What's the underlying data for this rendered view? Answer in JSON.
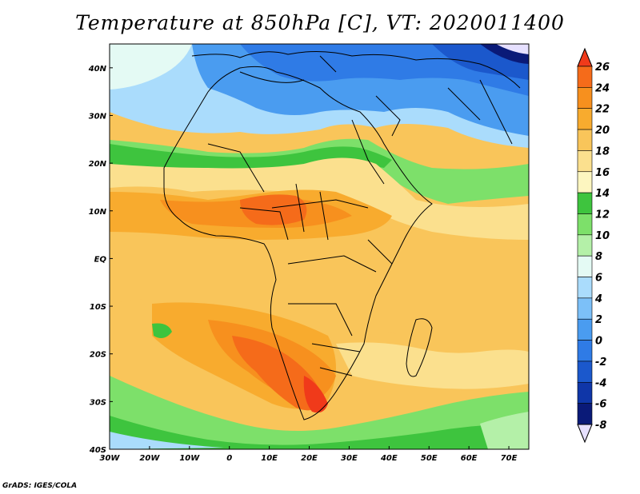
{
  "title": "Temperature at 850hPa [C], VT: 2020011400",
  "credit": "GrADS: IGES/COLA",
  "map": {
    "variable": "Temperature at 850hPa",
    "units": "C",
    "valid_time": "2020011400",
    "region": "Africa",
    "lon_range": [
      -30,
      75
    ],
    "lat_range": [
      -40,
      45
    ],
    "lat_labels": [
      "40N",
      "30N",
      "20N",
      "10N",
      "EQ",
      "10S",
      "20S",
      "30S",
      "40S"
    ],
    "lat_values": [
      40,
      30,
      20,
      10,
      0,
      -10,
      -20,
      -30,
      -40
    ],
    "lon_labels": [
      "30W",
      "20W",
      "10W",
      "0",
      "10E",
      "20E",
      "30E",
      "40E",
      "50E",
      "60E",
      "70E"
    ],
    "lon_values": [
      -30,
      -20,
      -10,
      0,
      10,
      20,
      30,
      40,
      50,
      60,
      70
    ]
  },
  "colorbar": {
    "levels": [
      26,
      24,
      22,
      20,
      18,
      16,
      14,
      12,
      10,
      8,
      6,
      4,
      2,
      0,
      -2,
      -4,
      -6,
      -8
    ],
    "labels": [
      "26",
      "24",
      "22",
      "20",
      "18",
      "16",
      "14",
      "12",
      "10",
      "8",
      "6",
      "4",
      "2",
      "0",
      "-2",
      "-4",
      "-6",
      "-8"
    ],
    "colors": [
      "#f03a1a",
      "#f56b1a",
      "#f7901e",
      "#f8ab2e",
      "#f9c55a",
      "#fbe08e",
      "#fdf6c0",
      "#3ec43e",
      "#7de06a",
      "#b4f0a8",
      "#e4faf4",
      "#aadcfc",
      "#7cc0f8",
      "#4a9cf0",
      "#2f7be6",
      "#1b58cc",
      "#0f36a8",
      "#0a1a78",
      "#e6e0ff"
    ]
  }
}
